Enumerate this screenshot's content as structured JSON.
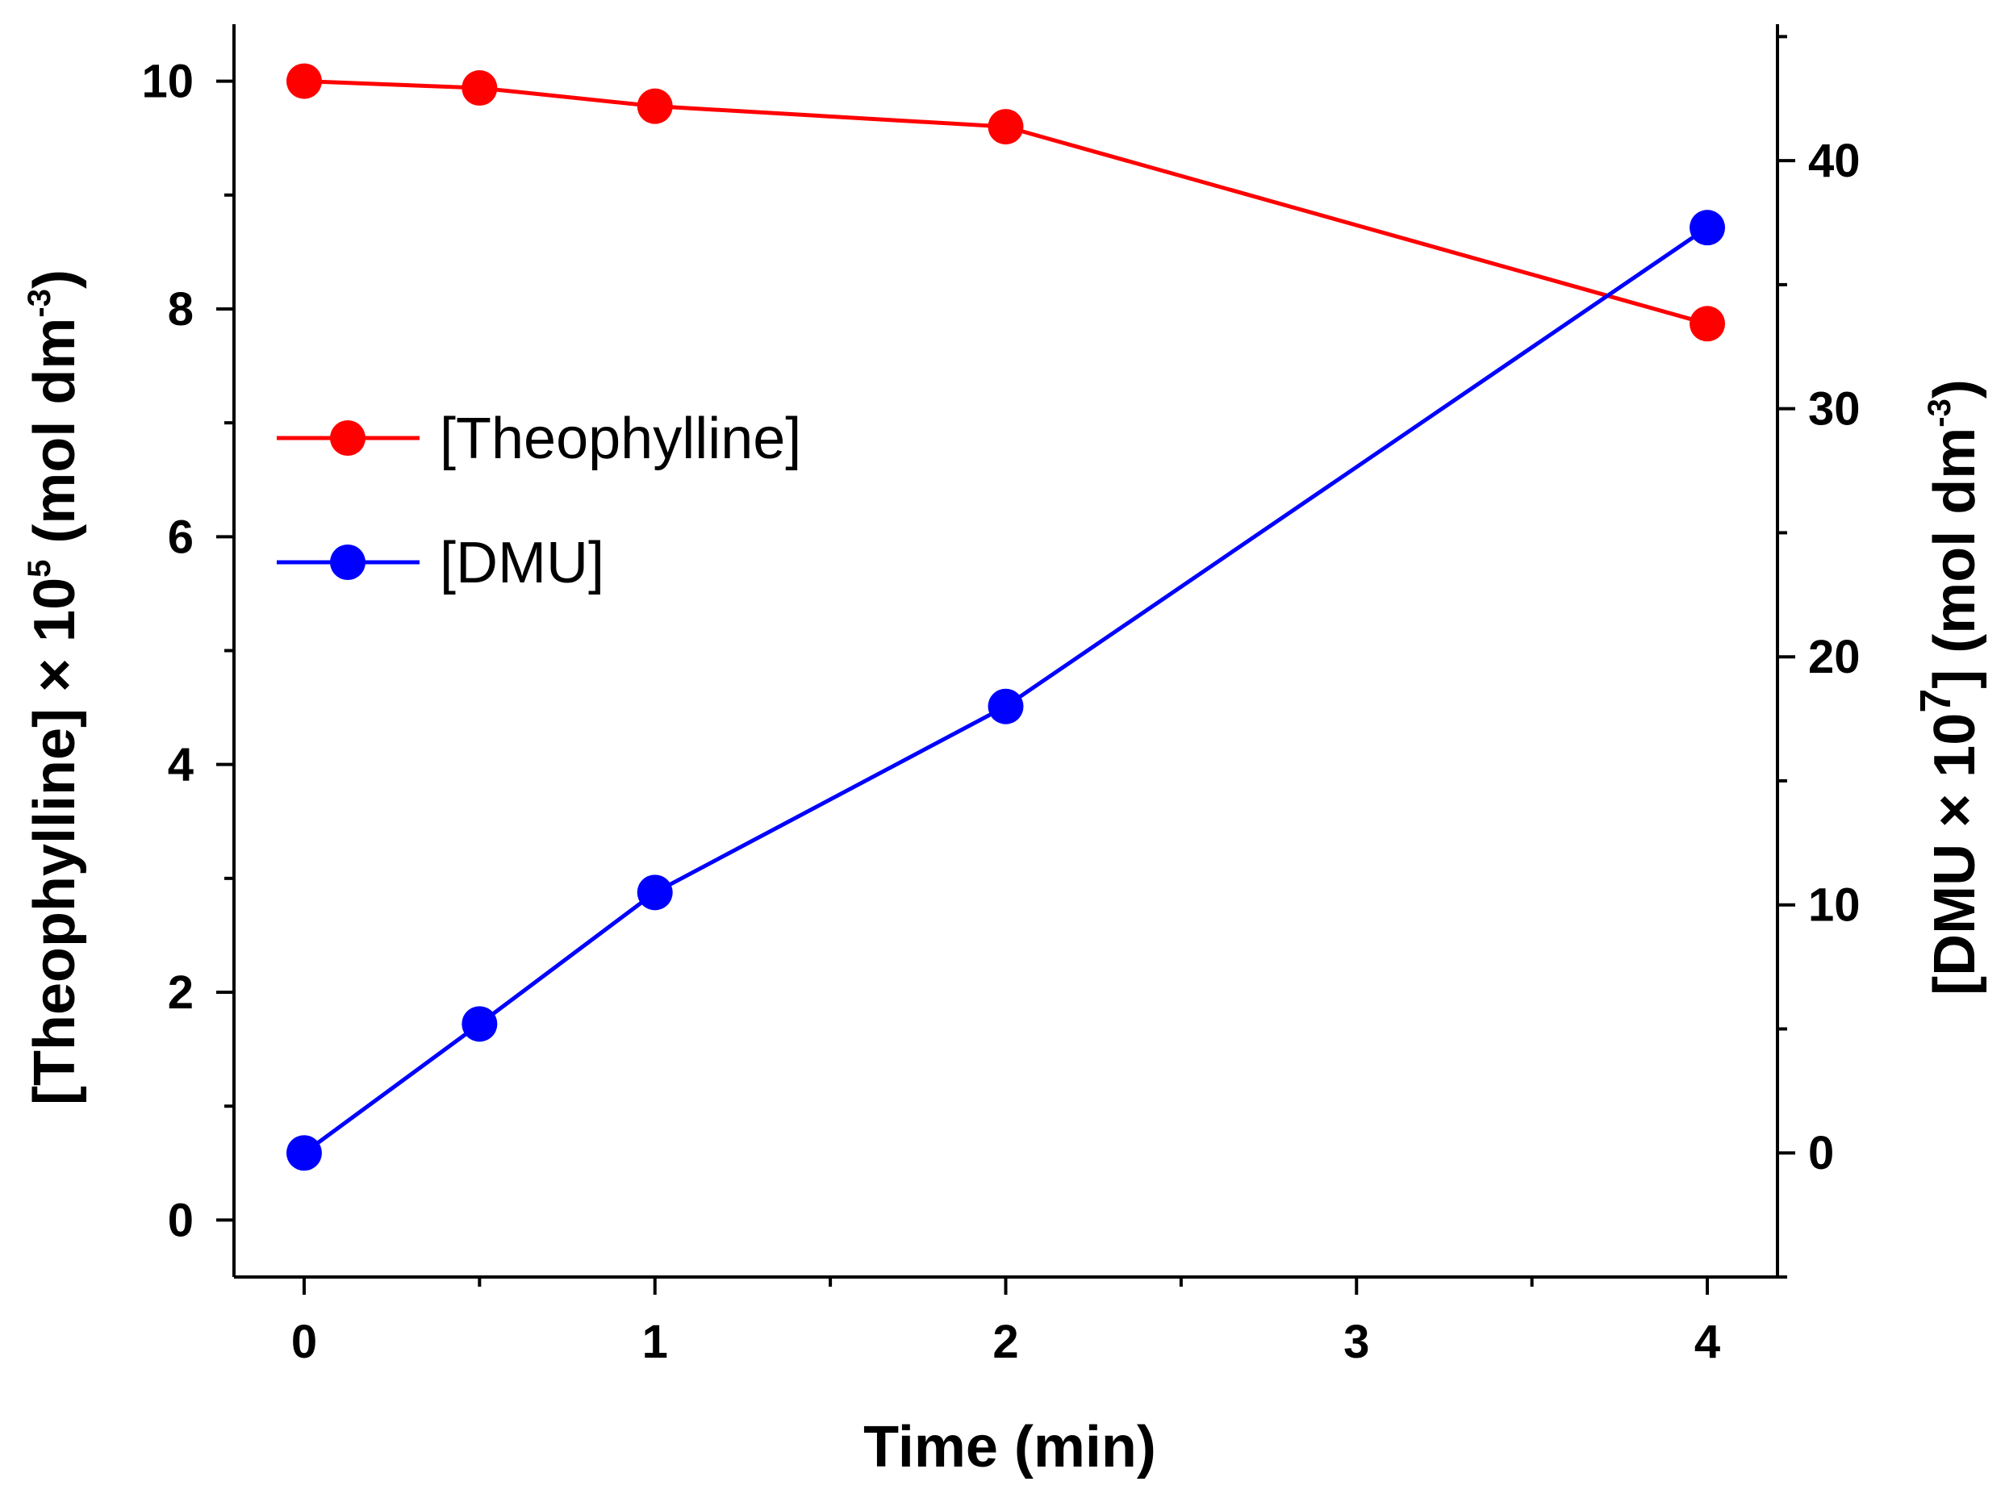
{
  "chart_data": {
    "type": "line",
    "x": [
      0,
      0.5,
      1,
      2,
      4
    ],
    "xlabel": "Time (min)",
    "xlim": [
      -0.2,
      4.2
    ],
    "xticks": [
      0,
      1,
      2,
      3,
      4
    ],
    "y_left": {
      "label_prefix": "[Theophylline] × 10",
      "label_sup": "5",
      "label_mid": " (mol dm",
      "label_sup2": "-3",
      "label_end": ")",
      "ylim": [
        -0.5,
        10.5
      ],
      "ticks": [
        0,
        2,
        4,
        6,
        8,
        10
      ]
    },
    "y_right": {
      "label_prefix": "[DMU × 10",
      "label_sup": "7",
      "label_mid": "] (mol dm",
      "label_sup2": "-3",
      "label_end": ")",
      "ylim": [
        -5,
        45.5
      ],
      "ticks": [
        0,
        10,
        20,
        30,
        40
      ]
    },
    "series": [
      {
        "name": "[Theophylline]",
        "axis": "left",
        "color": "#ff0000",
        "values": [
          10.0,
          9.94,
          9.78,
          9.6,
          7.87
        ]
      },
      {
        "name": "[DMU]",
        "axis": "right",
        "color": "#0000ff",
        "values": [
          0.0,
          5.2,
          10.5,
          18.0,
          37.3
        ]
      }
    ],
    "legend": "left-middle"
  }
}
